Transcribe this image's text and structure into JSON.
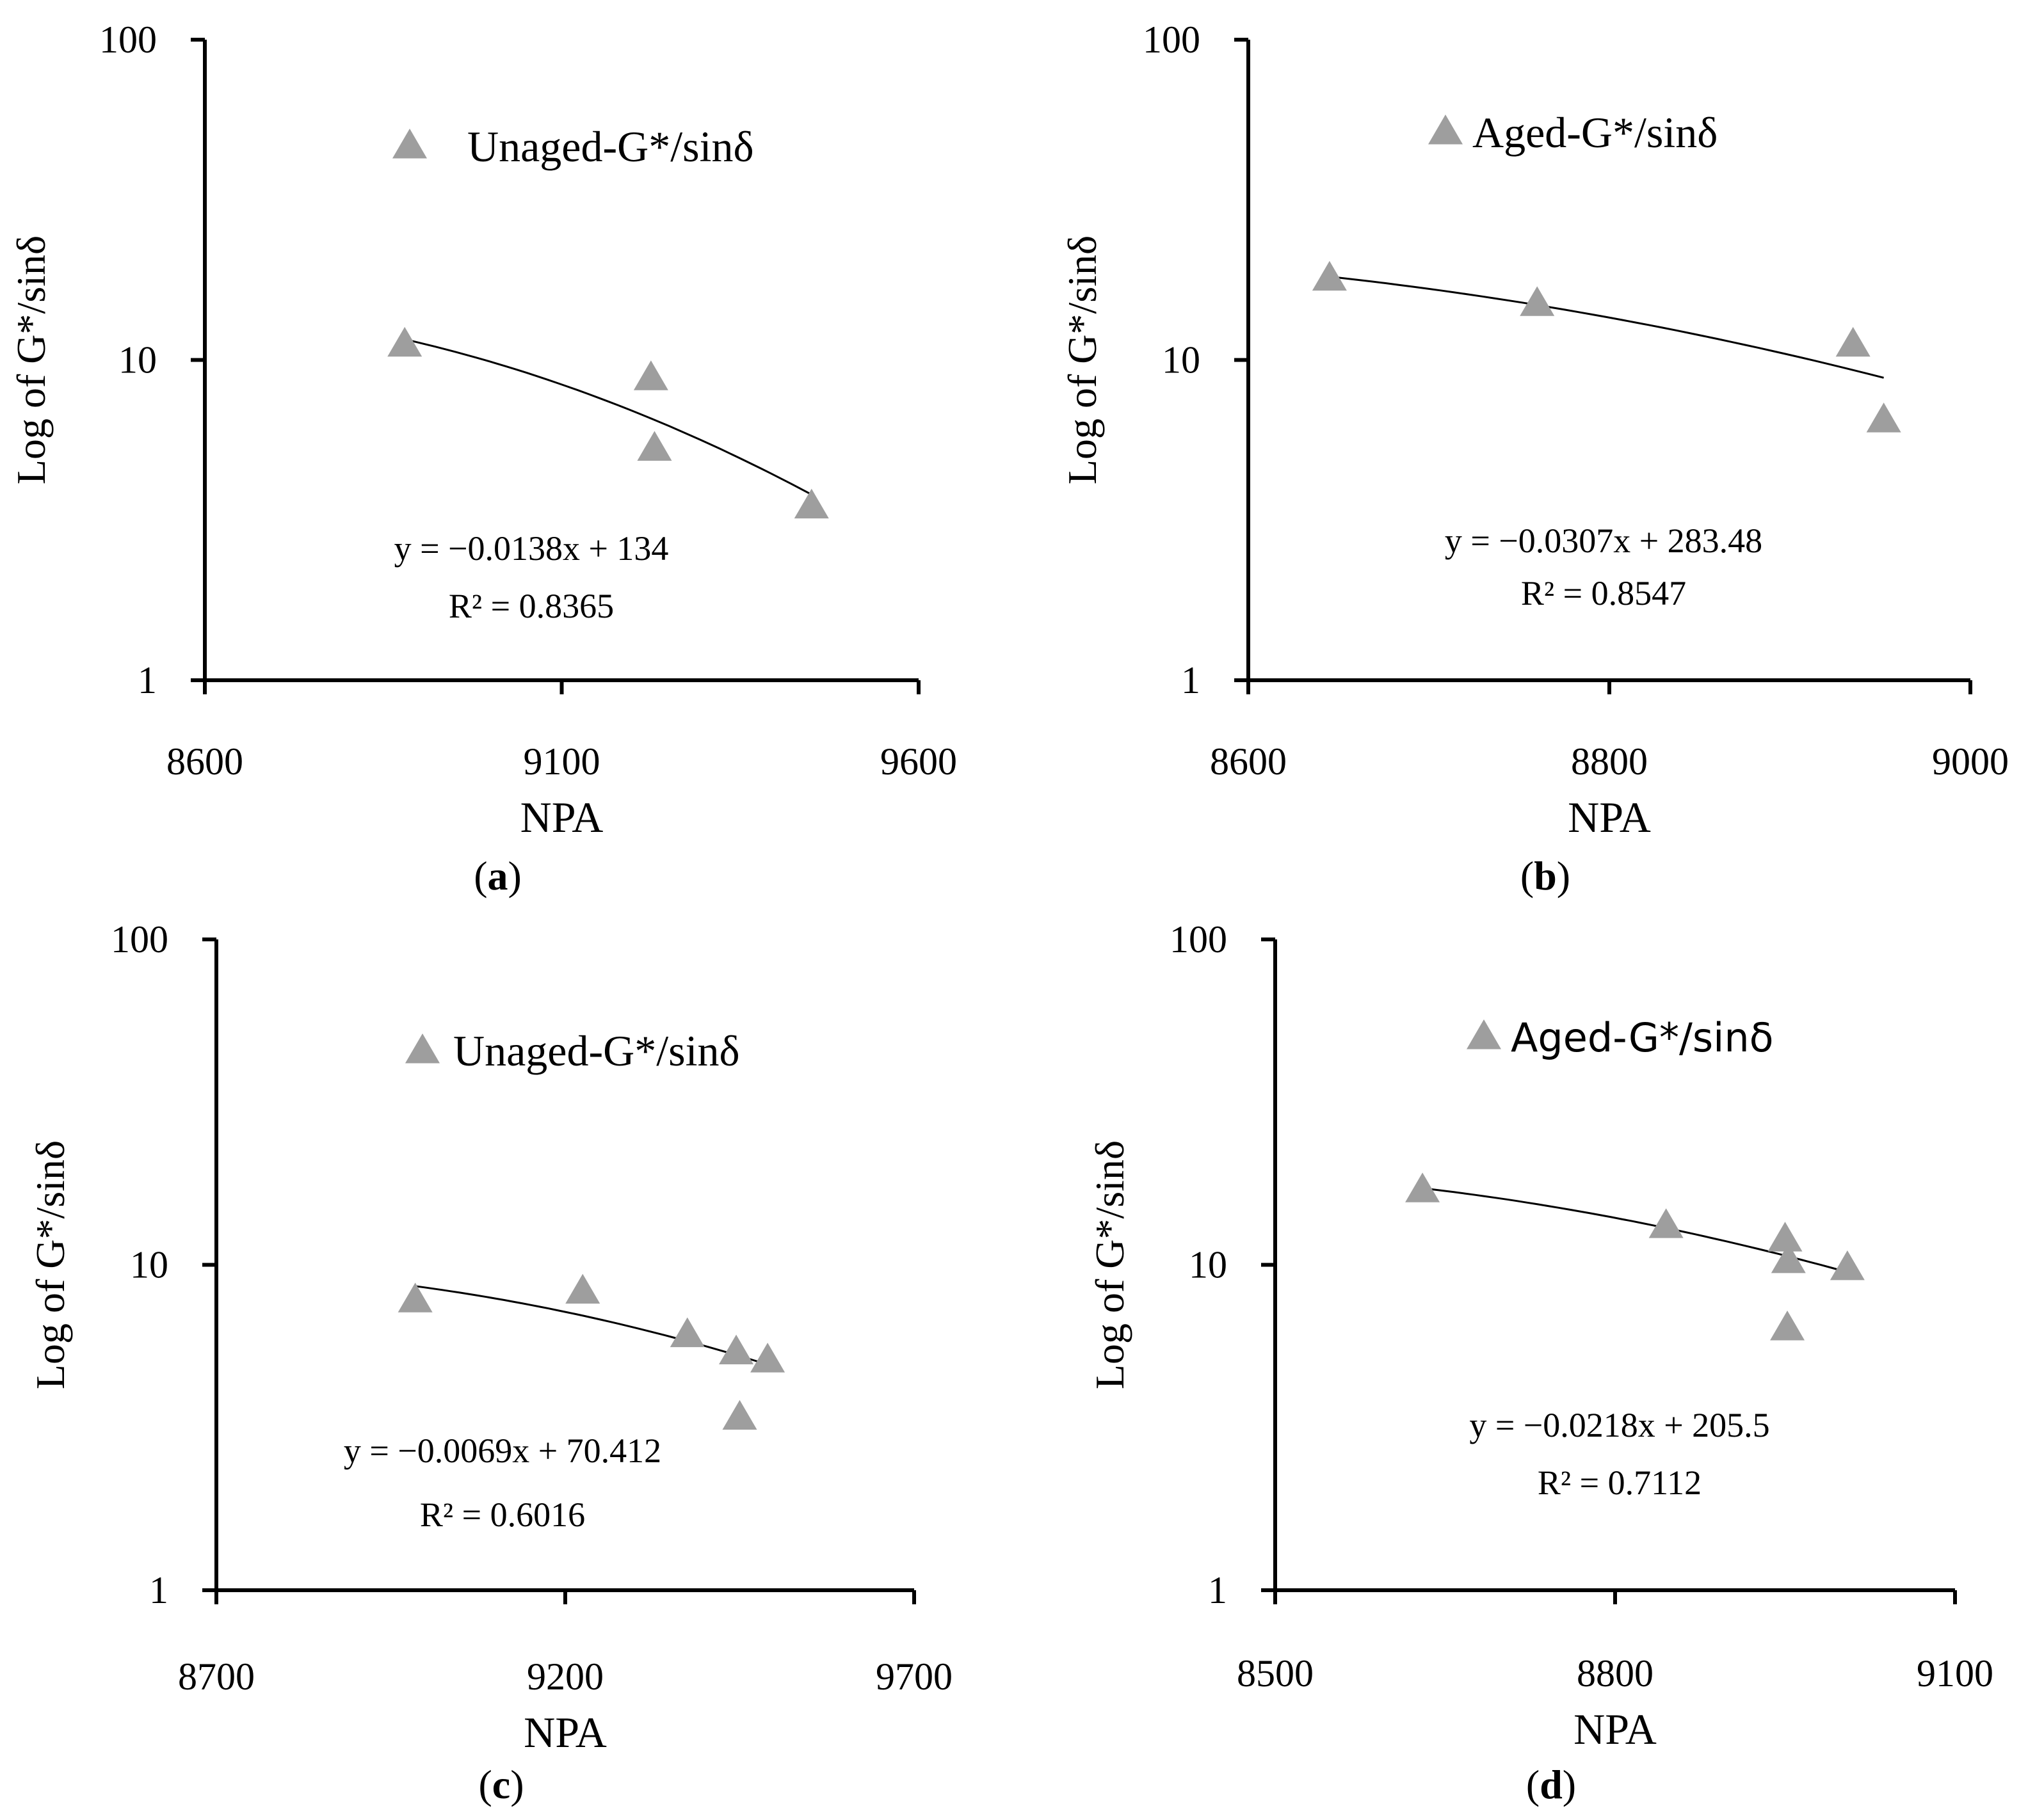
{
  "figure": {
    "colors": {
      "marker": "#9e9e9e",
      "axis": "#000000",
      "trendline": "#000000",
      "background": "#ffffff"
    },
    "marker_icon": "triangle-marker"
  },
  "chart_data": [
    {
      "id": "a",
      "type": "scatter",
      "panel_label": "(a)",
      "panel_letter": "a",
      "series": [
        {
          "name": "Unaged-G*/sinδ",
          "x": [
            8880,
            9225,
            9230,
            9450
          ],
          "y": [
            11.2,
            8.8,
            5.3,
            3.5
          ]
        }
      ],
      "trendline": {
        "type": "exponential",
        "x_range": [
          8880,
          9450
        ],
        "y_range": [
          11.6,
          3.8
        ]
      },
      "legend_label": "Unaged-G*/sinδ",
      "equation": "y = −0.0138x + 134",
      "r2_text": "R² = 0.8365",
      "xlabel": "NPA",
      "ylabel": "Log of G*/sinδ",
      "xlim": [
        8600,
        9600
      ],
      "xticks": [
        8600,
        9100,
        9600
      ],
      "xtick_labels": [
        "8600",
        "9100",
        "9600"
      ],
      "ylim": [
        1,
        100
      ],
      "yscale": "log",
      "yticks": [
        1,
        10,
        100
      ],
      "ytick_labels": [
        "1",
        "10",
        "100"
      ]
    },
    {
      "id": "b",
      "type": "scatter",
      "panel_label": "(b)",
      "panel_letter": "b",
      "series": [
        {
          "name": "Aged-G*/sinδ",
          "x": [
            8645,
            8760,
            8935,
            8952
          ],
          "y": [
            18.0,
            15.0,
            11.2,
            6.5
          ]
        }
      ],
      "trendline": {
        "type": "exponential",
        "x_range": [
          8645,
          8952
        ],
        "y_range": [
          18.2,
          8.8
        ]
      },
      "legend_label": "Aged-G*/sinδ",
      "equation": "y = −0.0307x + 283.48",
      "r2_text": "R² = 0.8547",
      "xlabel": "NPA",
      "ylabel": "Log of G*/sinδ",
      "xlim": [
        8600,
        9000
      ],
      "xticks": [
        8600,
        8800,
        9000
      ],
      "xtick_labels": [
        "8600",
        "8800",
        "9000"
      ],
      "ylim": [
        1,
        100
      ],
      "yscale": "log",
      "yticks": [
        1,
        10,
        100
      ],
      "ytick_labels": [
        "1",
        "10",
        "100"
      ]
    },
    {
      "id": "c",
      "type": "scatter",
      "panel_label": "(c)",
      "panel_letter": "c",
      "series": [
        {
          "name": "Unaged-G*/sinδ",
          "x": [
            8985,
            9225,
            9375,
            9445,
            9450,
            9490
          ],
          "y": [
            7.8,
            8.3,
            6.1,
            5.4,
            3.4,
            5.1
          ]
        }
      ],
      "trendline": {
        "type": "exponential",
        "x_range": [
          8985,
          9495
        ],
        "y_range": [
          8.6,
          4.9
        ]
      },
      "legend_label": "Unaged-G*/sinδ",
      "equation": "y = −0.0069x + 70.412",
      "r2_text": "R² = 0.6016",
      "xlabel": "NPA",
      "ylabel": "Log of G*/sinδ",
      "xlim": [
        8700,
        9700
      ],
      "xticks": [
        8700,
        9200,
        9700
      ],
      "xtick_labels": [
        "8700",
        "9200",
        "9700"
      ],
      "ylim": [
        1,
        100
      ],
      "yscale": "log",
      "yticks": [
        1,
        10,
        100
      ],
      "ytick_labels": [
        "1",
        "10",
        "100"
      ]
    },
    {
      "id": "d",
      "type": "scatter",
      "panel_label": "(d)",
      "panel_letter": "d",
      "series": [
        {
          "name": "Aged-G*/sinδ",
          "x": [
            8630,
            8845,
            8950,
            8953,
            8952,
            9005
          ],
          "y": [
            17.0,
            13.2,
            12.0,
            10.3,
            6.4,
            9.8
          ]
        }
      ],
      "trendline": {
        "type": "exponential",
        "x_range": [
          8630,
          9000
        ],
        "y_range": [
          17.2,
          9.6
        ]
      },
      "legend_label": "Aged-G*/sinδ",
      "equation": "y = −0.0218x + 205.5",
      "r2_text": "R² = 0.7112",
      "xlabel": "NPA",
      "ylabel": "Log of G*/sinδ",
      "xlim": [
        8500,
        9100
      ],
      "xticks": [
        8500,
        8800,
        9100
      ],
      "xtick_labels": [
        "8500",
        "8800",
        "9100"
      ],
      "ylim": [
        1,
        100
      ],
      "yscale": "log",
      "yticks": [
        1,
        10,
        100
      ],
      "ytick_labels": [
        "1",
        "10",
        "100"
      ]
    }
  ]
}
